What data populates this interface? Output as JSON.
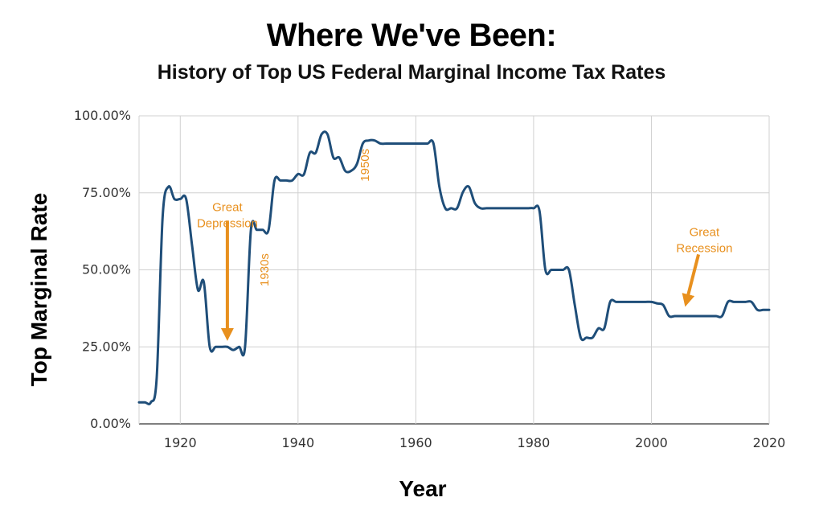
{
  "header": {
    "title": "Where We've Been:",
    "subtitle": "History of Top US Federal Marginal Income Tax Rates"
  },
  "chart_data": {
    "type": "line",
    "title": "Where We've Been:",
    "subtitle": "History of Top US Federal Marginal Income Tax Rates",
    "xlabel": "Year",
    "ylabel": "Top Marginal Rate",
    "xlim": [
      1913,
      2020
    ],
    "ylim": [
      0,
      100
    ],
    "grid": true,
    "line_color": "#1f4e79",
    "annotation_color": "#e8901e",
    "x_ticks": [
      1920,
      1940,
      1960,
      1980,
      2000,
      2020
    ],
    "x_tick_labels": [
      "1920",
      "1940",
      "1960",
      "1980",
      "2000",
      "2020"
    ],
    "y_ticks": [
      0,
      25,
      50,
      75,
      100
    ],
    "y_tick_labels": [
      "0.00%",
      "25.00%",
      "50.00%",
      "75.00%",
      "100.00%"
    ],
    "series": [
      {
        "x": [
          1913,
          1914,
          1915,
          1916,
          1917,
          1918,
          1919,
          1920,
          1921,
          1922,
          1923,
          1924,
          1925,
          1926,
          1927,
          1928,
          1929,
          1930,
          1931,
          1932,
          1933,
          1934,
          1935,
          1936,
          1937,
          1938,
          1939,
          1940,
          1941,
          1942,
          1943,
          1944,
          1945,
          1946,
          1947,
          1948,
          1949,
          1950,
          1951,
          1952,
          1953,
          1954,
          1955,
          1956,
          1957,
          1958,
          1959,
          1960,
          1961,
          1962,
          1963,
          1964,
          1965,
          1966,
          1967,
          1968,
          1969,
          1970,
          1971,
          1972,
          1973,
          1974,
          1975,
          1976,
          1977,
          1978,
          1979,
          1980,
          1981,
          1982,
          1983,
          1984,
          1985,
          1986,
          1987,
          1988,
          1989,
          1990,
          1991,
          1992,
          1993,
          1994,
          1995,
          1996,
          1997,
          1998,
          1999,
          2000,
          2001,
          2002,
          2003,
          2004,
          2005,
          2006,
          2007,
          2008,
          2009,
          2010,
          2011,
          2012,
          2013,
          2014,
          2015,
          2016,
          2017,
          2018,
          2019,
          2020
        ],
        "y": [
          7,
          7,
          7,
          15,
          67,
          77,
          73,
          73,
          73,
          58,
          43.5,
          46,
          25,
          25,
          25,
          25,
          24,
          25,
          25,
          63,
          63,
          63,
          63,
          79,
          79,
          79,
          79,
          81.1,
          81,
          88,
          88,
          94,
          94,
          86.45,
          86.45,
          82.13,
          82.13,
          84.36,
          91,
          92,
          92,
          91,
          91,
          91,
          91,
          91,
          91,
          91,
          91,
          91,
          91,
          77,
          70,
          70,
          70,
          75.25,
          77,
          71.75,
          70,
          70,
          70,
          70,
          70,
          70,
          70,
          70,
          70,
          70,
          69.13,
          50,
          50,
          50,
          50,
          50,
          38.5,
          28,
          28,
          28,
          31,
          31,
          39.6,
          39.6,
          39.6,
          39.6,
          39.6,
          39.6,
          39.6,
          39.6,
          39.1,
          38.6,
          35,
          35,
          35,
          35,
          35,
          35,
          35,
          35,
          35,
          35,
          39.6,
          39.6,
          39.6,
          39.6,
          39.6,
          37,
          37,
          37
        ]
      }
    ],
    "annotations": [
      {
        "text": [
          "Great",
          "Depression"
        ],
        "x": 1928,
        "y": 69
      },
      {
        "text": [
          "1930s"
        ],
        "x": 1935,
        "y": 50
      },
      {
        "text": [
          "1950s"
        ],
        "x": 1952,
        "y": 84
      },
      {
        "text": [
          "Great",
          "Recession"
        ],
        "x": 2009,
        "y": 61
      }
    ],
    "arrows": [
      {
        "from": [
          1928,
          66
        ],
        "to": [
          1928,
          29
        ]
      },
      {
        "from": [
          2008,
          55
        ],
        "to": [
          2006,
          40
        ]
      }
    ]
  }
}
